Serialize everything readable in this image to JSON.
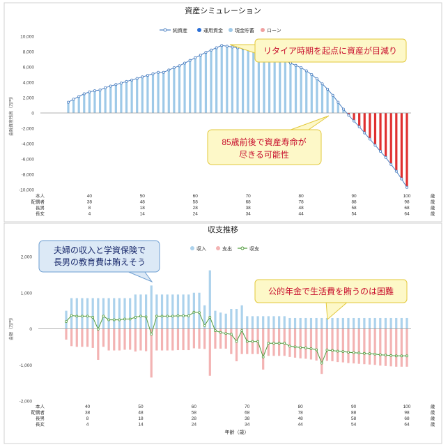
{
  "chart_data": [
    {
      "type": "bar",
      "title": "資産シミュレーション",
      "ylabel": "金融資産残高（万円）",
      "ylim": [
        -10000,
        10000
      ],
      "yticks": [
        10000,
        8000,
        6000,
        4000,
        2000,
        0,
        -2000,
        -4000,
        -6000,
        -8000,
        -10000
      ],
      "ytick_labels": [
        "10,000",
        "8,000",
        "6,000",
        "4,000",
        "2,000",
        "0",
        "-2,000",
        "-4,000",
        "-6,000",
        "-8,000",
        "-10,000"
      ],
      "x_start_age": 36,
      "x_end_age": 100,
      "legend_position": "top",
      "legend": [
        {
          "name": "純資産",
          "kind": "line"
        },
        {
          "name": "運用資金",
          "kind": "dot"
        },
        {
          "name": "現金貯蓄",
          "kind": "dot"
        },
        {
          "name": "ローン",
          "kind": "dot"
        }
      ],
      "series": [
        {
          "name": "純資産",
          "values": [
            1400,
            1800,
            2150,
            2500,
            2750,
            2900,
            3000,
            3300,
            3500,
            3700,
            3900,
            4100,
            4300,
            4500,
            4700,
            4900,
            5100,
            5300,
            5300,
            5600,
            5900,
            6150,
            6500,
            6850,
            7200,
            7550,
            7900,
            8200,
            8500,
            8800,
            8700,
            8600,
            8500,
            8400,
            8300,
            8150,
            8000,
            7800,
            7600,
            7350,
            7100,
            6800,
            6500,
            6200,
            5900,
            5500,
            5000,
            4450,
            3800,
            3100,
            2300,
            1400,
            500,
            -300,
            -1050,
            -1800,
            -2600,
            -3400,
            -4200,
            -5000,
            -5800,
            -6700,
            -7600,
            -8600,
            -9700
          ]
        },
        {
          "name": "現金貯蓄",
          "color": "#9ec9e8",
          "note": "positive part of 純資産"
        },
        {
          "name": "ローン",
          "color": "#e03030",
          "note": "negative part of 純資産"
        }
      ],
      "callouts": [
        {
          "text": "リタイア時期を起点に資産が目減り"
        },
        {
          "text": "85歳前後で資産寿命が\n尽きる可能性"
        }
      ],
      "age_rows": [
        {
          "label": "本人",
          "values": [
            "40",
            "50",
            "60",
            "70",
            "80",
            "90",
            "100"
          ],
          "unit": "歳"
        },
        {
          "label": "配偶者",
          "values": [
            "38",
            "48",
            "58",
            "68",
            "78",
            "88",
            "98"
          ],
          "unit": "歳"
        },
        {
          "label": "長男",
          "values": [
            "8",
            "18",
            "28",
            "38",
            "48",
            "58",
            "68"
          ],
          "unit": "歳"
        },
        {
          "label": "長女",
          "values": [
            "4",
            "14",
            "24",
            "34",
            "44",
            "54",
            "64"
          ],
          "unit": "歳"
        }
      ],
      "colors": {
        "line": "#4a7fc1",
        "positive_bar": "#9ec9e8",
        "negative_bar": "#e03030",
        "zero_line": "#999999"
      }
    },
    {
      "type": "bar",
      "title": "収支推移",
      "ylabel": "金額（万円）",
      "xlabel": "年齢（歳）",
      "ylim": [
        -2000,
        2000
      ],
      "yticks": [
        2000,
        1000,
        0,
        -1000,
        -2000
      ],
      "ytick_labels": [
        "2,000",
        "1,000",
        "0",
        "-1,000",
        "-2,000"
      ],
      "x_start_age": 36,
      "x_end_age": 100,
      "legend_position": "top-right",
      "legend": [
        {
          "name": "収入",
          "kind": "dot"
        },
        {
          "name": "支出",
          "kind": "dot"
        },
        {
          "name": "収支",
          "kind": "line"
        }
      ],
      "series": [
        {
          "name": "収入",
          "values": [
            500,
            850,
            850,
            850,
            850,
            850,
            850,
            850,
            850,
            850,
            850,
            850,
            850,
            950,
            950,
            950,
            1200,
            950,
            950,
            950,
            950,
            950,
            950,
            950,
            1000,
            1000,
            650,
            1620,
            500,
            450,
            420,
            550,
            550,
            650,
            350,
            350,
            350,
            350,
            350,
            350,
            350,
            350,
            300,
            300,
            300,
            300,
            300,
            300,
            300,
            300,
            300,
            300,
            300,
            300,
            300,
            300,
            300,
            300,
            300,
            300,
            300,
            300,
            300,
            300,
            300
          ]
        },
        {
          "name": "支出",
          "values": [
            -300,
            -480,
            -500,
            -500,
            -500,
            -530,
            -860,
            -500,
            -600,
            -600,
            -600,
            -580,
            -580,
            -630,
            -600,
            -620,
            -1350,
            -600,
            -600,
            -600,
            -600,
            -590,
            -590,
            -590,
            -540,
            -550,
            -560,
            -1300,
            -550,
            -550,
            -550,
            -700,
            -900,
            -700,
            -700,
            -700,
            -700,
            -1130,
            -750,
            -750,
            -750,
            -750,
            -780,
            -800,
            -820,
            -830,
            -850,
            -880,
            -1250,
            -890,
            -900,
            -920,
            -930,
            -950,
            -960,
            -970,
            -980,
            -990,
            -1000,
            -1020,
            -1030,
            -1040,
            -1050,
            -1050,
            -1050
          ]
        },
        {
          "name": "収支",
          "values": [
            200,
            370,
            350,
            350,
            350,
            320,
            -10,
            350,
            250,
            250,
            250,
            270,
            270,
            320,
            350,
            330,
            -150,
            350,
            350,
            350,
            350,
            360,
            360,
            360,
            460,
            450,
            90,
            320,
            -50,
            -100,
            -130,
            -150,
            -350,
            -50,
            -350,
            -350,
            -350,
            -780,
            -400,
            -400,
            -400,
            -400,
            -480,
            -500,
            -520,
            -530,
            -550,
            -580,
            -950,
            -590,
            -600,
            -620,
            -630,
            -650,
            -660,
            -670,
            -680,
            -690,
            -700,
            -720,
            -730,
            -740,
            -750,
            -750,
            -750
          ]
        }
      ],
      "callouts": [
        {
          "text": "夫婦の収入と学資保険で\n長男の教育費は賄えそう"
        },
        {
          "text": "公的年金で生活費を賄うのは困難"
        }
      ],
      "age_rows": [
        {
          "label": "本人",
          "values": [
            "40",
            "50",
            "60",
            "70",
            "80",
            "90",
            "100"
          ],
          "unit": "歳"
        },
        {
          "label": "配偶者",
          "values": [
            "38",
            "48",
            "58",
            "68",
            "78",
            "88",
            "98"
          ],
          "unit": "歳"
        },
        {
          "label": "長男",
          "values": [
            "8",
            "18",
            "28",
            "38",
            "48",
            "58",
            "68"
          ],
          "unit": "歳"
        },
        {
          "label": "長女",
          "values": [
            "4",
            "14",
            "24",
            "34",
            "44",
            "54",
            "64"
          ],
          "unit": "歳"
        }
      ],
      "colors": {
        "income": "#acd2ec",
        "expense": "#f3b3b3",
        "balance_line": "#4e9a3a",
        "balance_marker": "#ffffff"
      }
    }
  ]
}
